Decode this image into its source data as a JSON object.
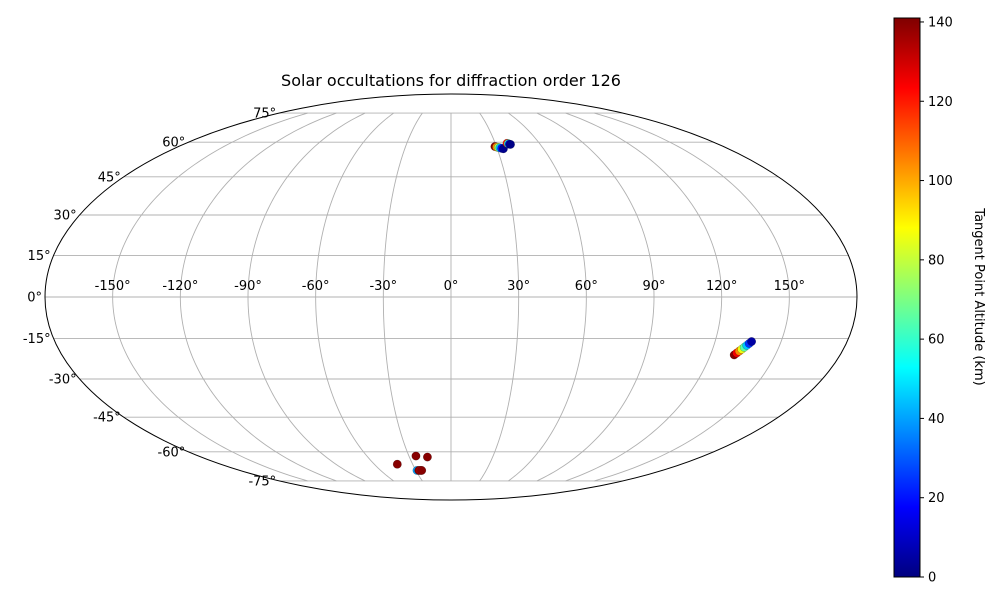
{
  "chart_data": {
    "type": "scatter",
    "projection": "mollweide",
    "title": "Solar occultations for diffraction order 126",
    "xlabel": "",
    "ylabel": "",
    "grid": true,
    "xlim": [
      -180,
      180
    ],
    "ylim": [
      -90,
      90
    ],
    "lon_ticks": [
      -150,
      -120,
      -90,
      -60,
      -30,
      0,
      30,
      60,
      90,
      120,
      150
    ],
    "lon_tick_labels": [
      "-150°",
      "-120°",
      "-90°",
      "-60°",
      "-30°",
      "0°",
      "30°",
      "60°",
      "90°",
      "120°",
      "150°"
    ],
    "lat_ticks": [
      75,
      60,
      45,
      30,
      15,
      0,
      -15,
      -30,
      -45,
      -60,
      -75
    ],
    "lat_tick_labels": [
      "75°",
      "60°",
      "45°",
      "30°",
      "15°",
      "0°",
      "-15°",
      "-30°",
      "-45°",
      "-60°",
      "-75°"
    ],
    "colorbar": {
      "label": "Tangent Point Altitude (km)",
      "range": [
        0,
        141
      ],
      "ticks": [
        0,
        20,
        40,
        60,
        80,
        100,
        120,
        140
      ],
      "tick_labels": [
        "0",
        "20",
        "40",
        "60",
        "80",
        "100",
        "120",
        "140"
      ],
      "colormap": "jet"
    },
    "tracks": [
      {
        "lon": [
          29,
          30,
          31,
          32,
          33,
          34
        ],
        "lat": [
          58,
          57.8,
          57.6,
          57.4,
          57.2,
          57
        ],
        "alt": [
          140,
          105,
          75,
          45,
          20,
          2
        ]
      },
      {
        "lon": [
          38,
          38.7,
          39.3,
          40
        ],
        "lat": [
          59.5,
          59.3,
          59.1,
          59
        ],
        "alt": [
          120,
          60,
          15,
          1
        ]
      },
      {
        "lon": [
          131,
          131.8,
          132.6,
          133.4,
          134.2,
          135,
          135.8,
          136.6
        ],
        "lat": [
          -21,
          -20.3,
          -19.6,
          -18.9,
          -18.2,
          -17.5,
          -16.8,
          -16.1
        ],
        "alt": [
          140,
          125,
          105,
          85,
          65,
          45,
          25,
          5
        ]
      },
      {
        "lon": [
          -42
        ],
        "lat": [
          -66
        ],
        "alt": [
          140
        ]
      },
      {
        "lon": [
          -25
        ],
        "lat": [
          -62
        ],
        "alt": [
          140
        ]
      },
      {
        "lon": [
          -17
        ],
        "lat": [
          -62.5
        ],
        "alt": [
          140
        ]
      },
      {
        "lon": [
          -29,
          -27.5,
          -26.5,
          -25.5,
          -25
        ],
        "lat": [
          -69.2,
          -69.2,
          -69.2,
          -69.2,
          -69.2
        ],
        "alt": [
          40,
          140,
          135,
          125,
          140
        ]
      }
    ]
  }
}
